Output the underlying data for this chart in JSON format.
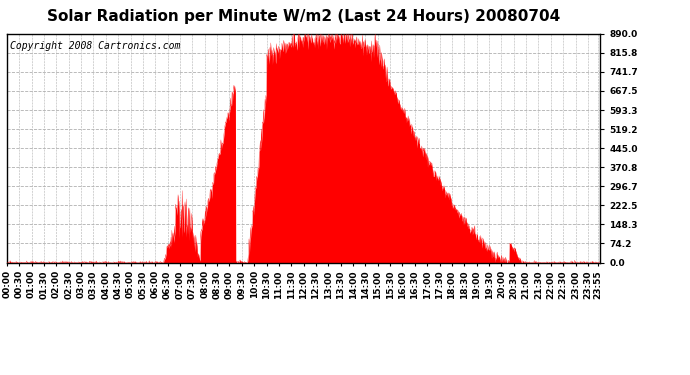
{
  "title": "Solar Radiation per Minute W/m2 (Last 24 Hours) 20080704",
  "copyright": "Copyright 2008 Cartronics.com",
  "yticks": [
    0.0,
    74.2,
    148.3,
    222.5,
    296.7,
    370.8,
    445.0,
    519.2,
    593.3,
    667.5,
    741.7,
    815.8,
    890.0
  ],
  "ymin": 0.0,
  "ymax": 890.0,
  "fill_color": "#FF0000",
  "line_color": "#FF0000",
  "bg_color": "#FFFFFF",
  "grid_color": "#B0B0B0",
  "dashed_line_color": "#FF0000",
  "title_fontsize": 11,
  "copyright_fontsize": 7,
  "tick_label_fontsize": 6.5
}
